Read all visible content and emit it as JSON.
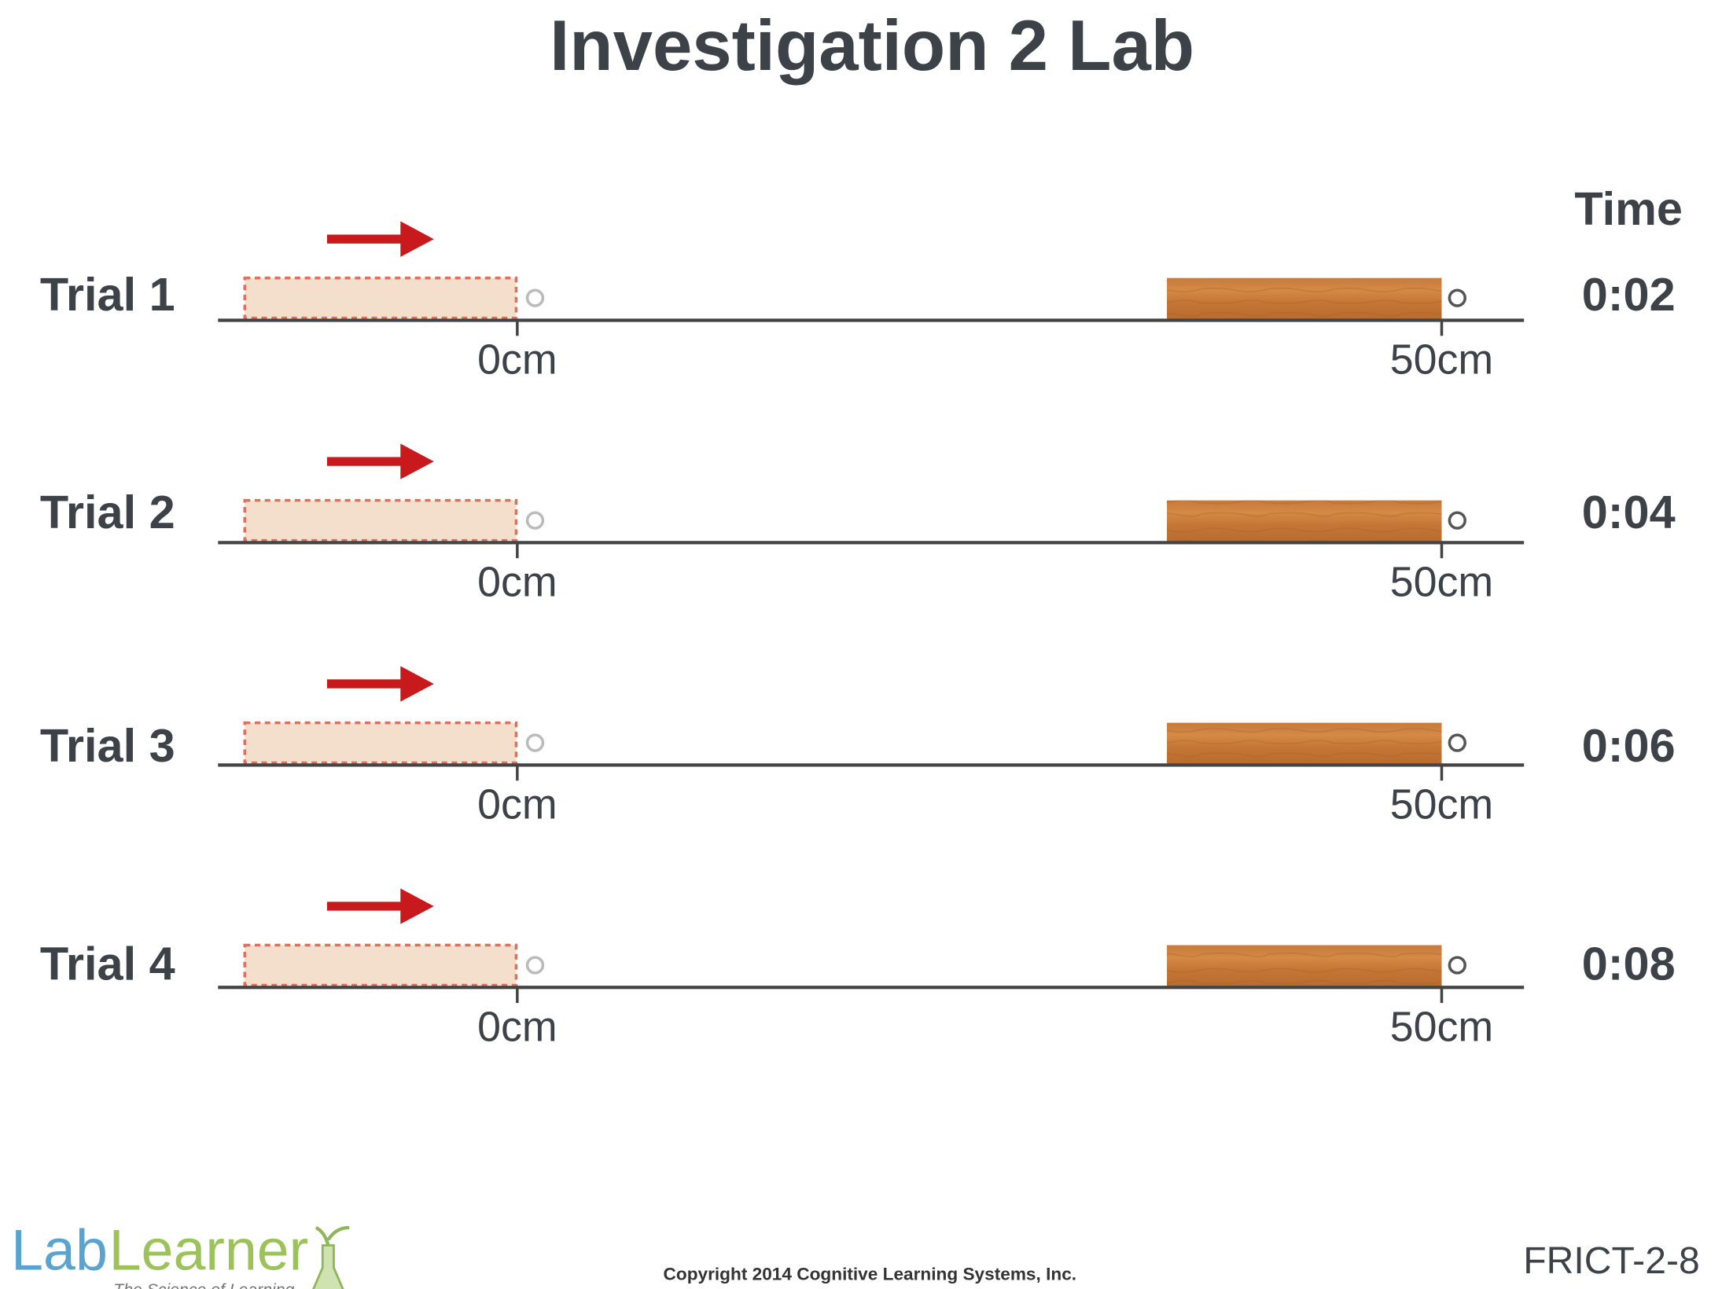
{
  "header": {
    "title": "Investigation 2 Lab",
    "time_heading": "Time"
  },
  "trials": [
    {
      "label": "Trial 1",
      "start": "0cm",
      "end": "50cm",
      "time": "0:02"
    },
    {
      "label": "Trial 2",
      "start": "0cm",
      "end": "50cm",
      "time": "0:04"
    },
    {
      "label": "Trial 3",
      "start": "0cm",
      "end": "50cm",
      "time": "0:06"
    },
    {
      "label": "Trial 4",
      "start": "0cm",
      "end": "50cm",
      "time": "0:08"
    }
  ],
  "footer": {
    "logo_lab": "Lab",
    "logo_learner": "Learner",
    "logo_tagline": "The Science of Learning",
    "copyright": "Copyright 2014 Cognitive Learning Systems, Inc.",
    "code": "FRICT-2-8"
  }
}
